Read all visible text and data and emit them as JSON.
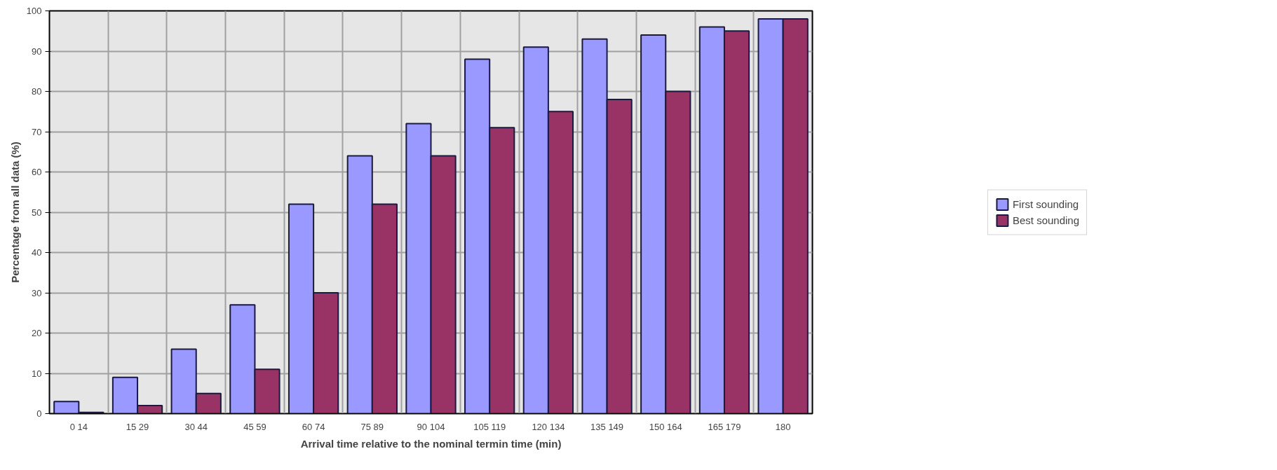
{
  "chart_data": {
    "type": "bar",
    "xlabel": "Arrival time relative to the nominal termin time (min)",
    "ylabel": "Percentage from all data (%)",
    "categories": [
      "0 14",
      "15 29",
      "30 44",
      "45 59",
      "60 74",
      "75 89",
      "90 104",
      "105 119",
      "120 134",
      "135 149",
      "150 164",
      "165 179",
      "180"
    ],
    "series": [
      {
        "name": "First sounding",
        "color": "#9999ff",
        "values": [
          3,
          9,
          16,
          27,
          52,
          64,
          72,
          88,
          91,
          93,
          94,
          96,
          98
        ]
      },
      {
        "name": "Best sounding",
        "color": "#993366",
        "values": [
          0.3,
          2,
          5,
          11,
          30,
          52,
          64,
          71,
          75,
          78,
          80,
          95,
          98
        ]
      }
    ],
    "ylim": [
      0,
      100
    ],
    "yticks": [
      0,
      10,
      20,
      30,
      40,
      50,
      60,
      70,
      80,
      90,
      100
    ],
    "grid": true,
    "legend": "right"
  }
}
